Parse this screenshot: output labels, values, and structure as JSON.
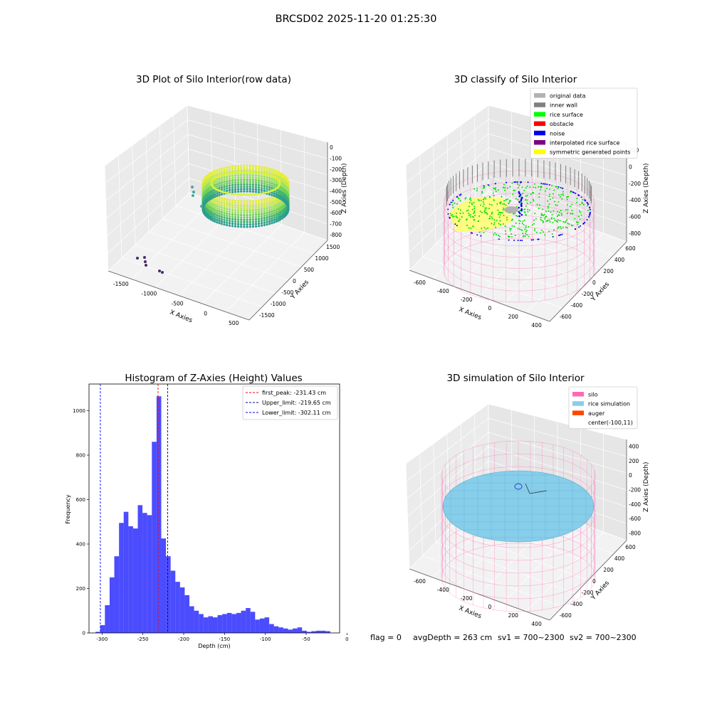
{
  "figure": {
    "suptitle": "BRCSD02 2025-11-20 01:25:30",
    "footer": {
      "flag": "flag = 0",
      "avg_depth": "avgDepth = 263 cm",
      "sv1": "sv1 = 700~2300",
      "sv2": "sv2 = 700~2300"
    }
  },
  "panels": {
    "raw": {
      "title": "3D Plot of Silo Interior(row data)",
      "xlabel": "X Axies",
      "ylabel": "Y Axies",
      "zlabel": "Z Axies (Depth)",
      "xticks": [
        "-1500",
        "-1000",
        "-500",
        "0",
        "500"
      ],
      "yticks": [
        "-1500",
        "-1000",
        "-500",
        "0",
        "500",
        "1000",
        "1500"
      ],
      "zticks": [
        "0",
        "-100",
        "-200",
        "-300",
        "-400",
        "-500",
        "-600",
        "-700",
        "-800"
      ]
    },
    "classify": {
      "title": "3D classify of Silo Interior",
      "xlabel": "X Axies",
      "ylabel": "Y Axies",
      "zlabel": "Z Axies (Depth)",
      "xticks": [
        "-600",
        "-400",
        "-200",
        "0",
        "200",
        "400"
      ],
      "yticks": [
        "-600",
        "-400",
        "-200",
        "0",
        "200",
        "400",
        "600"
      ],
      "zticks": [
        "200",
        "0",
        "-200",
        "-400",
        "-600",
        "-800"
      ],
      "legend": [
        {
          "label": "original data",
          "color": "#b3b3b3"
        },
        {
          "label": "inner wall",
          "color": "#808080"
        },
        {
          "label": "rice surface",
          "color": "#00ff00"
        },
        {
          "label": "obstacle",
          "color": "#ff0000"
        },
        {
          "label": "noise",
          "color": "#0000ee"
        },
        {
          "label": "interpolated rice surface",
          "color": "#800080"
        },
        {
          "label": "symmetric generated points",
          "color": "#ffff00"
        }
      ]
    },
    "simulation": {
      "title": "3D simulation of Silo Interior",
      "xlabel": "X Axies",
      "ylabel": "Y Axies",
      "zlabel": "Z Axies (Depth)",
      "xticks": [
        "-600",
        "-400",
        "-200",
        "0",
        "200",
        "400"
      ],
      "yticks": [
        "-600",
        "-400",
        "-200",
        "0",
        "200",
        "400",
        "600"
      ],
      "zticks": [
        "400",
        "200",
        "0",
        "-200",
        "-400",
        "-600",
        "-800"
      ],
      "legend": [
        {
          "label": "silo",
          "color": "#ff69b4"
        },
        {
          "label": "rice simulation",
          "color": "#87ceeb"
        },
        {
          "label": "auger",
          "color": "#ff4500"
        },
        {
          "label": "center(-100,11)",
          "color": ""
        }
      ]
    }
  },
  "chart_data": {
    "type": "bar",
    "title": "Histogram of Z-Axies (Height) Values",
    "xlabel": "Depth (cm)",
    "ylabel": "Frequency",
    "xlim": [
      -316,
      -9
    ],
    "ylim": [
      0,
      1120
    ],
    "xticks": [
      -300,
      -250,
      -200,
      -150,
      -100,
      -50,
      0
    ],
    "yticks": [
      0,
      200,
      400,
      600,
      800,
      1000
    ],
    "bin_width": 5.75,
    "bins_start": -308,
    "values": [
      5,
      35,
      125,
      250,
      345,
      495,
      545,
      480,
      470,
      575,
      540,
      530,
      860,
      1065,
      425,
      345,
      280,
      230,
      205,
      170,
      120,
      100,
      85,
      70,
      75,
      70,
      80,
      85,
      90,
      85,
      90,
      100,
      112,
      95,
      60,
      65,
      70,
      40,
      30,
      25,
      20,
      15,
      20,
      25,
      10,
      5,
      8,
      10,
      10,
      8
    ],
    "bar_color": "#0000ff",
    "lines": [
      {
        "label": "first_peak: -231.43 cm",
        "x": -231.43,
        "color": "#ff0000"
      },
      {
        "label": "Upper_limit: -219.65 cm",
        "x": -219.65,
        "color": "#00008b"
      },
      {
        "label": "Lower_limit: -302.11 cm",
        "x": -302.11,
        "color": "#0000ff"
      }
    ],
    "legend_position": "upper right"
  }
}
